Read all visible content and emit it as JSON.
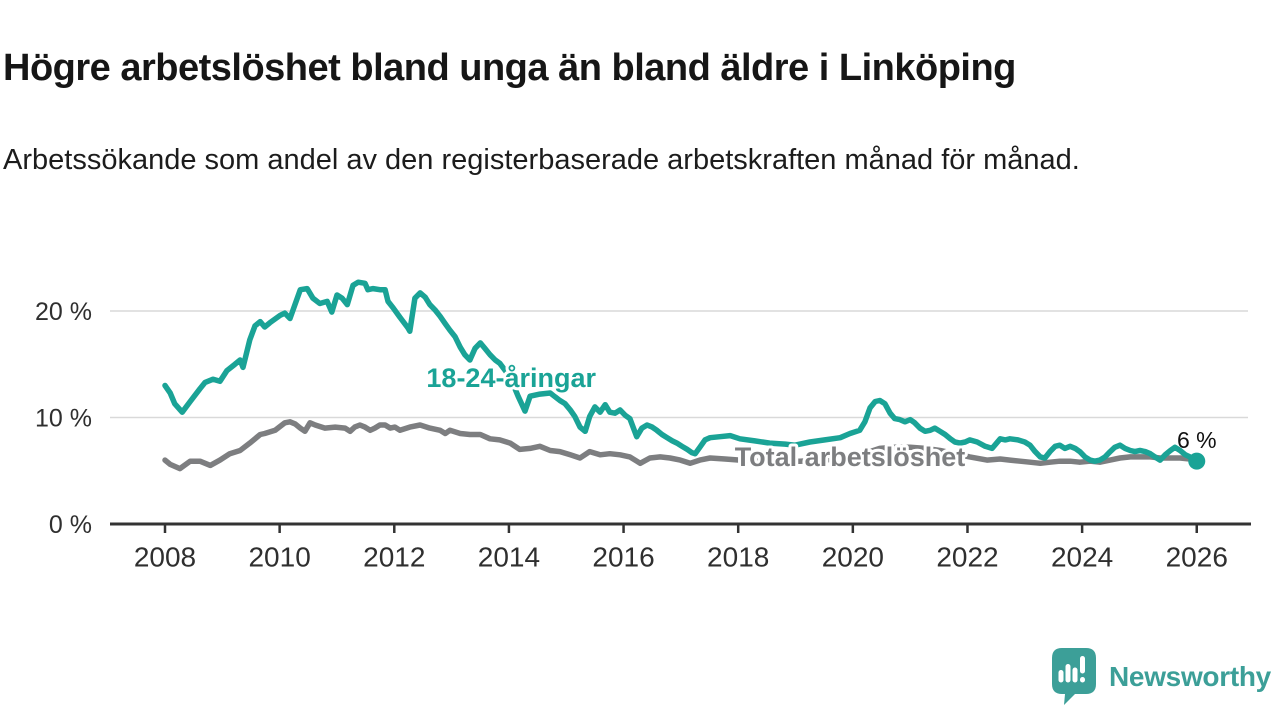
{
  "header": {
    "title": "Högre arbetslöshet bland unga än bland äldre i Linköping",
    "subtitle": "Arbetssökande som andel av den registerbaserade arbetskraften månad för månad."
  },
  "chart_data": {
    "type": "line",
    "title": "Högre arbetslöshet bland unga än bland äldre i Linköping",
    "subtitle": "Arbetssökande som andel av den registerbaserade arbetskraften månad för månad.",
    "x_axis": {
      "range": [
        2007.95,
        2026.95
      ],
      "ticks": [
        {
          "value": 2008,
          "label": "2008"
        },
        {
          "value": 2010,
          "label": "2010"
        },
        {
          "value": 2012,
          "label": "2012"
        },
        {
          "value": 2014,
          "label": "2014"
        },
        {
          "value": 2016,
          "label": "2016"
        },
        {
          "value": 2018,
          "label": "2018"
        },
        {
          "value": 2020,
          "label": "2020"
        },
        {
          "value": 2022,
          "label": "2022"
        },
        {
          "value": 2024,
          "label": "2024"
        },
        {
          "value": 2026,
          "label": "2026"
        }
      ]
    },
    "y_axis": {
      "range": [
        0,
        24
      ],
      "unit": "%",
      "ticks": [
        {
          "value": 0,
          "label": "0 %"
        },
        {
          "value": 10,
          "label": "10 %"
        },
        {
          "value": 20,
          "label": "20 %"
        }
      ],
      "gridlines": [
        10,
        20
      ]
    },
    "series": [
      {
        "name": "18-24-åringar",
        "color": "#1aa396",
        "label": {
          "text": "18-24-åringar",
          "x": 2014.04,
          "y": 13.7
        },
        "points": [
          [
            2008.0,
            13.0
          ],
          [
            2008.09,
            12.3
          ],
          [
            2008.17,
            11.3
          ],
          [
            2008.3,
            10.5
          ],
          [
            2008.44,
            11.5
          ],
          [
            2008.61,
            12.7
          ],
          [
            2008.7,
            13.3
          ],
          [
            2008.84,
            13.6
          ],
          [
            2008.96,
            13.4
          ],
          [
            2009.08,
            14.4
          ],
          [
            2009.22,
            15.0
          ],
          [
            2009.31,
            15.4
          ],
          [
            2009.36,
            14.7
          ],
          [
            2009.48,
            17.3
          ],
          [
            2009.57,
            18.6
          ],
          [
            2009.66,
            19.0
          ],
          [
            2009.74,
            18.5
          ],
          [
            2009.83,
            18.9
          ],
          [
            2010.01,
            19.6
          ],
          [
            2010.09,
            19.8
          ],
          [
            2010.18,
            19.3
          ],
          [
            2010.36,
            22.0
          ],
          [
            2010.48,
            22.1
          ],
          [
            2010.58,
            21.2
          ],
          [
            2010.7,
            20.7
          ],
          [
            2010.83,
            20.9
          ],
          [
            2010.91,
            19.9
          ],
          [
            2011.0,
            21.5
          ],
          [
            2011.09,
            21.2
          ],
          [
            2011.18,
            20.6
          ],
          [
            2011.28,
            22.4
          ],
          [
            2011.37,
            22.7
          ],
          [
            2011.49,
            22.6
          ],
          [
            2011.54,
            22.0
          ],
          [
            2011.63,
            22.1
          ],
          [
            2011.75,
            22.0
          ],
          [
            2011.84,
            22.0
          ],
          [
            2011.89,
            20.9
          ],
          [
            2011.98,
            20.3
          ],
          [
            2012.1,
            19.4
          ],
          [
            2012.24,
            18.4
          ],
          [
            2012.27,
            18.1
          ],
          [
            2012.36,
            21.2
          ],
          [
            2012.45,
            21.7
          ],
          [
            2012.54,
            21.3
          ],
          [
            2012.62,
            20.6
          ],
          [
            2012.71,
            20.1
          ],
          [
            2012.8,
            19.5
          ],
          [
            2012.89,
            18.8
          ],
          [
            2012.97,
            18.2
          ],
          [
            2013.06,
            17.6
          ],
          [
            2013.15,
            16.6
          ],
          [
            2013.23,
            15.9
          ],
          [
            2013.32,
            15.4
          ],
          [
            2013.41,
            16.5
          ],
          [
            2013.5,
            17.0
          ],
          [
            2013.58,
            16.5
          ],
          [
            2013.67,
            15.9
          ],
          [
            2013.76,
            15.4
          ],
          [
            2013.84,
            15.1
          ],
          [
            2014.02,
            13.8
          ],
          [
            2014.16,
            12.0
          ],
          [
            2014.28,
            10.6
          ],
          [
            2014.37,
            12.0
          ],
          [
            2014.54,
            12.2
          ],
          [
            2014.72,
            12.3
          ],
          [
            2014.89,
            11.6
          ],
          [
            2014.98,
            11.3
          ],
          [
            2015.07,
            10.7
          ],
          [
            2015.15,
            10.1
          ],
          [
            2015.24,
            9.1
          ],
          [
            2015.33,
            8.7
          ],
          [
            2015.41,
            10.1
          ],
          [
            2015.5,
            11.0
          ],
          [
            2015.59,
            10.5
          ],
          [
            2015.68,
            11.2
          ],
          [
            2015.76,
            10.5
          ],
          [
            2015.85,
            10.4
          ],
          [
            2015.94,
            10.7
          ],
          [
            2016.03,
            10.2
          ],
          [
            2016.11,
            9.9
          ],
          [
            2016.23,
            8.2
          ],
          [
            2016.32,
            9.0
          ],
          [
            2016.41,
            9.3
          ],
          [
            2016.5,
            9.1
          ],
          [
            2016.58,
            8.8
          ],
          [
            2016.67,
            8.4
          ],
          [
            2016.76,
            8.1
          ],
          [
            2016.85,
            7.8
          ],
          [
            2016.93,
            7.6
          ],
          [
            2017.02,
            7.3
          ],
          [
            2017.11,
            7.0
          ],
          [
            2017.19,
            6.7
          ],
          [
            2017.25,
            6.6
          ],
          [
            2017.33,
            7.2
          ],
          [
            2017.42,
            7.9
          ],
          [
            2017.51,
            8.1
          ],
          [
            2017.68,
            8.2
          ],
          [
            2017.86,
            8.3
          ],
          [
            2018.03,
            8.0
          ],
          [
            2018.29,
            7.8
          ],
          [
            2018.55,
            7.6
          ],
          [
            2018.82,
            7.5
          ],
          [
            2018.99,
            7.4
          ],
          [
            2019.25,
            7.7
          ],
          [
            2019.51,
            7.9
          ],
          [
            2019.78,
            8.1
          ],
          [
            2019.95,
            8.5
          ],
          [
            2020.12,
            8.8
          ],
          [
            2020.21,
            9.6
          ],
          [
            2020.3,
            10.9
          ],
          [
            2020.39,
            11.5
          ],
          [
            2020.47,
            11.6
          ],
          [
            2020.56,
            11.3
          ],
          [
            2020.65,
            10.4
          ],
          [
            2020.73,
            9.9
          ],
          [
            2020.82,
            9.8
          ],
          [
            2020.91,
            9.6
          ],
          [
            2021.0,
            9.8
          ],
          [
            2021.08,
            9.5
          ],
          [
            2021.17,
            9.0
          ],
          [
            2021.26,
            8.7
          ],
          [
            2021.35,
            8.8
          ],
          [
            2021.43,
            9.0
          ],
          [
            2021.52,
            8.7
          ],
          [
            2021.61,
            8.4
          ],
          [
            2021.7,
            8.0
          ],
          [
            2021.78,
            7.7
          ],
          [
            2021.87,
            7.6
          ],
          [
            2021.96,
            7.7
          ],
          [
            2022.04,
            7.9
          ],
          [
            2022.17,
            7.7
          ],
          [
            2022.31,
            7.3
          ],
          [
            2022.43,
            7.1
          ],
          [
            2022.57,
            8.0
          ],
          [
            2022.66,
            7.9
          ],
          [
            2022.74,
            8.0
          ],
          [
            2022.88,
            7.9
          ],
          [
            2023.0,
            7.7
          ],
          [
            2023.09,
            7.4
          ],
          [
            2023.18,
            6.8
          ],
          [
            2023.27,
            6.3
          ],
          [
            2023.35,
            6.2
          ],
          [
            2023.44,
            6.8
          ],
          [
            2023.53,
            7.3
          ],
          [
            2023.61,
            7.4
          ],
          [
            2023.7,
            7.1
          ],
          [
            2023.79,
            7.3
          ],
          [
            2023.88,
            7.1
          ],
          [
            2023.96,
            6.8
          ],
          [
            2024.05,
            6.3
          ],
          [
            2024.14,
            6.0
          ],
          [
            2024.22,
            5.9
          ],
          [
            2024.31,
            6.0
          ],
          [
            2024.4,
            6.3
          ],
          [
            2024.49,
            6.8
          ],
          [
            2024.57,
            7.2
          ],
          [
            2024.66,
            7.4
          ],
          [
            2024.75,
            7.1
          ],
          [
            2024.84,
            6.9
          ],
          [
            2024.92,
            6.8
          ],
          [
            2025.01,
            6.9
          ],
          [
            2025.1,
            6.8
          ],
          [
            2025.19,
            6.6
          ],
          [
            2025.27,
            6.3
          ],
          [
            2025.36,
            6.0
          ],
          [
            2025.45,
            6.5
          ],
          [
            2025.54,
            6.9
          ],
          [
            2025.62,
            7.2
          ],
          [
            2025.71,
            6.9
          ],
          [
            2025.8,
            6.5
          ],
          [
            2025.88,
            6.3
          ],
          [
            2026.0,
            5.9
          ]
        ]
      },
      {
        "name": "Total arbetslöshet",
        "color": "#7d7e80",
        "label": {
          "text": "Total arbetslöshet",
          "x": 2019.95,
          "y": 6.3
        },
        "points": [
          [
            2008.0,
            6.0
          ],
          [
            2008.09,
            5.6
          ],
          [
            2008.26,
            5.2
          ],
          [
            2008.44,
            5.9
          ],
          [
            2008.61,
            5.9
          ],
          [
            2008.79,
            5.5
          ],
          [
            2008.96,
            6.0
          ],
          [
            2009.13,
            6.6
          ],
          [
            2009.31,
            6.9
          ],
          [
            2009.48,
            7.6
          ],
          [
            2009.66,
            8.4
          ],
          [
            2009.74,
            8.5
          ],
          [
            2009.92,
            8.8
          ],
          [
            2010.09,
            9.5
          ],
          [
            2010.18,
            9.6
          ],
          [
            2010.27,
            9.4
          ],
          [
            2010.36,
            9.0
          ],
          [
            2010.44,
            8.7
          ],
          [
            2010.53,
            9.5
          ],
          [
            2010.62,
            9.3
          ],
          [
            2010.79,
            9.0
          ],
          [
            2010.97,
            9.1
          ],
          [
            2011.14,
            9.0
          ],
          [
            2011.23,
            8.7
          ],
          [
            2011.31,
            9.1
          ],
          [
            2011.4,
            9.3
          ],
          [
            2011.49,
            9.1
          ],
          [
            2011.58,
            8.8
          ],
          [
            2011.66,
            9.0
          ],
          [
            2011.75,
            9.3
          ],
          [
            2011.84,
            9.3
          ],
          [
            2011.93,
            9.0
          ],
          [
            2012.01,
            9.1
          ],
          [
            2012.1,
            8.8
          ],
          [
            2012.27,
            9.1
          ],
          [
            2012.45,
            9.3
          ],
          [
            2012.62,
            9.0
          ],
          [
            2012.8,
            8.8
          ],
          [
            2012.89,
            8.5
          ],
          [
            2012.97,
            8.8
          ],
          [
            2013.15,
            8.5
          ],
          [
            2013.32,
            8.4
          ],
          [
            2013.5,
            8.4
          ],
          [
            2013.67,
            8.0
          ],
          [
            2013.84,
            7.9
          ],
          [
            2014.02,
            7.6
          ],
          [
            2014.19,
            7.0
          ],
          [
            2014.37,
            7.1
          ],
          [
            2014.54,
            7.3
          ],
          [
            2014.72,
            6.9
          ],
          [
            2014.89,
            6.8
          ],
          [
            2015.07,
            6.5
          ],
          [
            2015.24,
            6.2
          ],
          [
            2015.41,
            6.8
          ],
          [
            2015.59,
            6.5
          ],
          [
            2015.76,
            6.6
          ],
          [
            2015.94,
            6.5
          ],
          [
            2016.11,
            6.3
          ],
          [
            2016.29,
            5.7
          ],
          [
            2016.46,
            6.2
          ],
          [
            2016.64,
            6.3
          ],
          [
            2016.81,
            6.2
          ],
          [
            2016.99,
            6.0
          ],
          [
            2017.16,
            5.7
          ],
          [
            2017.33,
            6.0
          ],
          [
            2017.51,
            6.2
          ],
          [
            2017.77,
            6.1
          ],
          [
            2018.03,
            6.0
          ],
          [
            2018.38,
            5.9
          ],
          [
            2018.73,
            5.9
          ],
          [
            2019.08,
            5.9
          ],
          [
            2019.43,
            6.0
          ],
          [
            2019.78,
            6.1
          ],
          [
            2020.04,
            6.3
          ],
          [
            2020.3,
            6.8
          ],
          [
            2020.47,
            7.1
          ],
          [
            2020.73,
            7.2
          ],
          [
            2021.0,
            7.2
          ],
          [
            2021.26,
            7.1
          ],
          [
            2021.52,
            6.9
          ],
          [
            2021.78,
            6.6
          ],
          [
            2022.04,
            6.3
          ],
          [
            2022.34,
            6.0
          ],
          [
            2022.57,
            6.1
          ],
          [
            2022.74,
            6.0
          ],
          [
            2022.92,
            5.9
          ],
          [
            2023.09,
            5.8
          ],
          [
            2023.27,
            5.7
          ],
          [
            2023.44,
            5.8
          ],
          [
            2023.61,
            5.9
          ],
          [
            2023.79,
            5.9
          ],
          [
            2023.96,
            5.8
          ],
          [
            2024.14,
            5.9
          ],
          [
            2024.31,
            5.8
          ],
          [
            2024.49,
            6.0
          ],
          [
            2024.66,
            6.2
          ],
          [
            2024.84,
            6.3
          ],
          [
            2025.01,
            6.3
          ],
          [
            2025.19,
            6.3
          ],
          [
            2025.36,
            6.2
          ],
          [
            2025.54,
            6.2
          ],
          [
            2025.71,
            6.2
          ],
          [
            2025.88,
            6.1
          ],
          [
            2025.97,
            6.1
          ]
        ]
      }
    ],
    "end_annotation": {
      "text": "6 %",
      "x": 2026.0,
      "y": 7.9
    },
    "end_point": {
      "x": 2026.0,
      "y": 5.9
    },
    "legend_position": "inline-labels",
    "grid": true
  },
  "colors": {
    "accent_teal": "#1aa396",
    "line_gray": "#7d7e80",
    "axis": "#333333",
    "grid": "#d9d9d9",
    "tick_text": "#2f2f2f",
    "annotation_text": "#111111",
    "brand_teal": "#3c9f98"
  },
  "footer": {
    "brand": "Newsworthy"
  }
}
